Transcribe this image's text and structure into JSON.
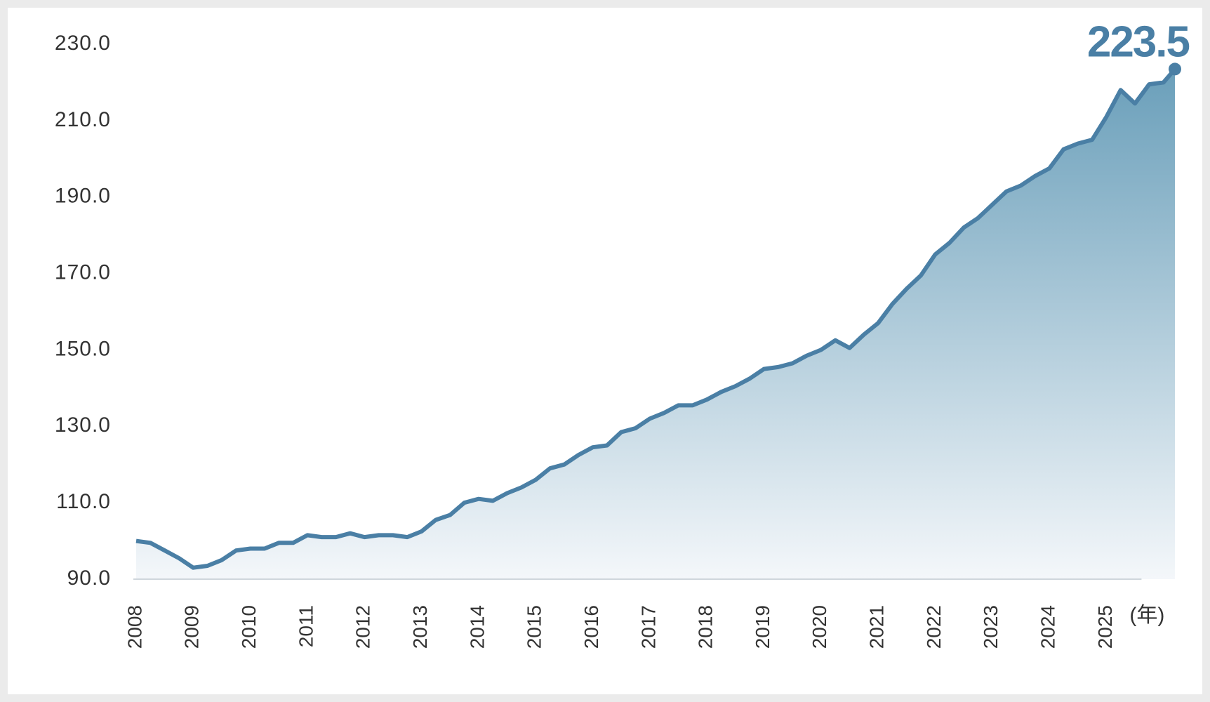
{
  "chart_data": {
    "type": "area",
    "x": [
      2008,
      2008.25,
      2008.5,
      2008.75,
      2009,
      2009.25,
      2009.5,
      2009.75,
      2010,
      2010.25,
      2010.5,
      2010.75,
      2011,
      2011.25,
      2011.5,
      2011.75,
      2012,
      2012.25,
      2012.5,
      2012.75,
      2013,
      2013.25,
      2013.5,
      2013.75,
      2014,
      2014.25,
      2014.5,
      2014.75,
      2015,
      2015.25,
      2015.5,
      2015.75,
      2016,
      2016.25,
      2016.5,
      2016.75,
      2017,
      2017.25,
      2017.5,
      2017.75,
      2018,
      2018.25,
      2018.5,
      2018.75,
      2019,
      2019.25,
      2019.5,
      2019.75,
      2020,
      2020.25,
      2020.5,
      2020.75,
      2021,
      2021.25,
      2021.5,
      2021.75,
      2022,
      2022.25,
      2022.5,
      2022.75,
      2023,
      2023.25,
      2023.5,
      2023.75,
      2024,
      2024.25,
      2024.5,
      2024.75,
      2025,
      2025.25,
      2025.5,
      2025.75,
      2026,
      2026.2
    ],
    "values": [
      100,
      99.5,
      97.5,
      95.5,
      93,
      93.5,
      95,
      97.5,
      98,
      98,
      99.5,
      99.5,
      101.5,
      101,
      101,
      102,
      101,
      101.5,
      101.5,
      101,
      102.5,
      105.5,
      106.8,
      110,
      111,
      110.5,
      112.5,
      114,
      116,
      119,
      120,
      122.5,
      124.5,
      125,
      128.5,
      129.5,
      132,
      133.5,
      135.5,
      135.5,
      137,
      139,
      140.5,
      142.5,
      145,
      145.5,
      146.5,
      148.5,
      150,
      152.5,
      150.5,
      154,
      157,
      162,
      166,
      169.5,
      175,
      178,
      182,
      184.5,
      188,
      191.5,
      193,
      195.5,
      197.5,
      202.5,
      204,
      205,
      211,
      218,
      214.5,
      219.5,
      220,
      223.5
    ],
    "color": "#4a7fa5",
    "xlim": [
      2008,
      2026.2
    ],
    "xticks": [
      2008,
      2009,
      2010,
      2011,
      2012,
      2013,
      2014,
      2015,
      2016,
      2017,
      2018,
      2019,
      2020,
      2021,
      2022,
      2023,
      2024,
      2025
    ],
    "x_axis_label": "(年)",
    "ylim": [
      90,
      230
    ],
    "yticks": [
      {
        "value": 90,
        "label": "90.0"
      },
      {
        "value": 110,
        "label": "110.0"
      },
      {
        "value": 130,
        "label": "130.0"
      },
      {
        "value": 150,
        "label": "150.0"
      },
      {
        "value": 170,
        "label": "170.0"
      },
      {
        "value": 190,
        "label": "190.0"
      },
      {
        "value": 210,
        "label": "210.0"
      },
      {
        "value": 230,
        "label": "230.0"
      }
    ]
  }
}
